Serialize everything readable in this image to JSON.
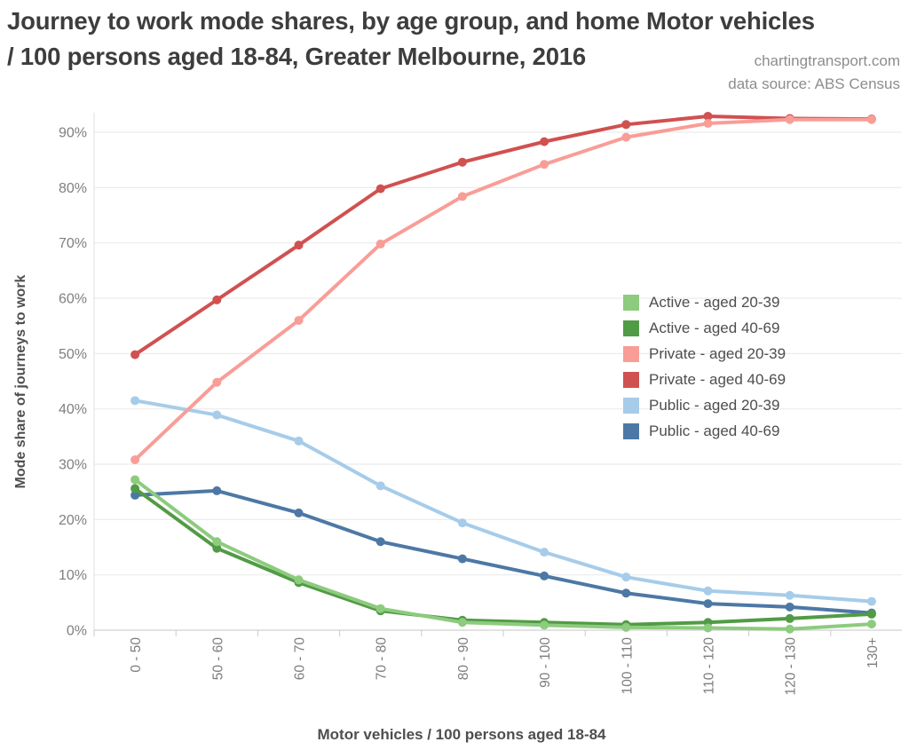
{
  "header": {
    "title_line1": "Journey to work mode shares, by age group, and home Motor vehicles",
    "title_line2": "/ 100 persons aged 18-84, Greater Melbourne, 2016",
    "credit_site": "chartingtransport.com",
    "credit_source": "data source: ABS Census"
  },
  "chart_data": {
    "type": "line",
    "title": "Journey to work mode shares, by age group, and home Motor vehicles / 100 persons aged 18-84, Greater Melbourne, 2016",
    "xlabel": "Motor vehicles / 100 persons aged 18-84",
    "ylabel": "Mode share of journeys to work",
    "categories": [
      "0 - 50",
      "50 - 60",
      "60 - 70",
      "70 - 80",
      "80 - 90",
      "90 - 100",
      "100 - 110",
      "110 - 120",
      "120 - 130",
      "130+"
    ],
    "y_ticks": [
      {
        "value": 0,
        "label": "0%"
      },
      {
        "value": 10,
        "label": "10%"
      },
      {
        "value": 20,
        "label": "20%"
      },
      {
        "value": 30,
        "label": "30%"
      },
      {
        "value": 40,
        "label": "40%"
      },
      {
        "value": 50,
        "label": "50%"
      },
      {
        "value": 60,
        "label": "60%"
      },
      {
        "value": 70,
        "label": "70%"
      },
      {
        "value": 80,
        "label": "80%"
      },
      {
        "value": 90,
        "label": "90%"
      }
    ],
    "ylim": [
      0,
      95
    ],
    "grid": true,
    "legend_position": "middle-right",
    "x_labels_rotated": true,
    "series": [
      {
        "name": "Active - aged 20-39",
        "color": "#8DCB7E",
        "values": [
          27.2,
          16.0,
          9.1,
          3.9,
          1.4,
          0.9,
          0.5,
          0.4,
          0.2,
          1.1
        ]
      },
      {
        "name": "Active - aged 40-69",
        "color": "#529B46",
        "values": [
          25.6,
          14.8,
          8.6,
          3.5,
          1.8,
          1.4,
          1.0,
          1.4,
          2.1,
          2.9
        ]
      },
      {
        "name": "Private - aged 20-39",
        "color": "#F99D97",
        "values": [
          30.8,
          44.8,
          56.0,
          69.8,
          78.4,
          84.2,
          89.1,
          91.6,
          92.3,
          92.3
        ]
      },
      {
        "name": "Private - aged 40-69",
        "color": "#D05150",
        "values": [
          49.8,
          59.7,
          69.6,
          79.8,
          84.6,
          88.3,
          91.4,
          92.9,
          92.5,
          92.4
        ]
      },
      {
        "name": "Public - aged 20-39",
        "color": "#A6CCE9",
        "values": [
          41.5,
          38.9,
          34.2,
          26.1,
          19.4,
          14.1,
          9.6,
          7.1,
          6.3,
          5.2
        ]
      },
      {
        "name": "Public - aged 40-69",
        "color": "#4D78A5",
        "values": [
          24.4,
          25.2,
          21.2,
          16.0,
          12.9,
          9.8,
          6.7,
          4.8,
          4.2,
          3.1
        ]
      }
    ]
  }
}
